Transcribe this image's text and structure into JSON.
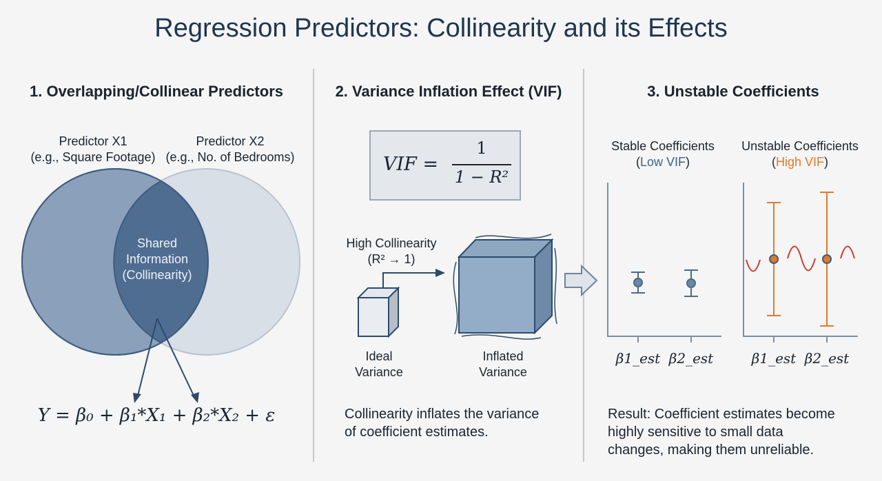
{
  "title": "Regression Predictors: Collinearity and its Effects",
  "panels": [
    {
      "heading": "1. Overlapping/Collinear Predictors",
      "predictor1": {
        "name": "Predictor X1",
        "example": "(e.g., Square Footage)"
      },
      "predictor2": {
        "name": "Predictor X2",
        "example": "(e.g., No. of Bedrooms)"
      },
      "overlap_lines": [
        "Shared",
        "Information",
        "(Collinearity)"
      ],
      "equation": "Y = β₀ + β₁*X₁ + β₂*X₂ + ε"
    },
    {
      "heading": "2. Variance Inflation Effect (VIF)",
      "formula": {
        "lhs": "VIF =",
        "numerator": "1",
        "denominator": "1 − R²"
      },
      "arrow_label": [
        "High Collinearity",
        "(R² → 1)"
      ],
      "small_cube_label": [
        "Ideal",
        "Variance"
      ],
      "big_cube_label": [
        "Inflated",
        "Variance"
      ],
      "caption": [
        "Collinearity inflates the variance",
        "of coefficient estimates."
      ]
    },
    {
      "heading": "3. Unstable Coefficients",
      "stable": {
        "title": "Stable Coefficients",
        "paren_open": "(",
        "tag": "Low VIF",
        "paren_close": ")",
        "ticks": [
          "β1_est",
          "β2_est"
        ]
      },
      "unstable": {
        "title": "Unstable Coefficients",
        "paren_open": "(",
        "tag": "High VIF",
        "paren_close": ")",
        "ticks": [
          "β1_est",
          "β2_est"
        ]
      },
      "caption": [
        "Result: Coefficient estimates become",
        "highly sensitive to small data",
        "changes, making them unreliable."
      ]
    }
  ],
  "colors": {
    "title": "#1f3550",
    "circle_x1": "#8aa0bb",
    "circle_x2": "#d6dde6",
    "overlap": "#4f6d91",
    "stable": "#4a6a89",
    "unstable": "#e07a2a",
    "wave": "#c83a34"
  }
}
